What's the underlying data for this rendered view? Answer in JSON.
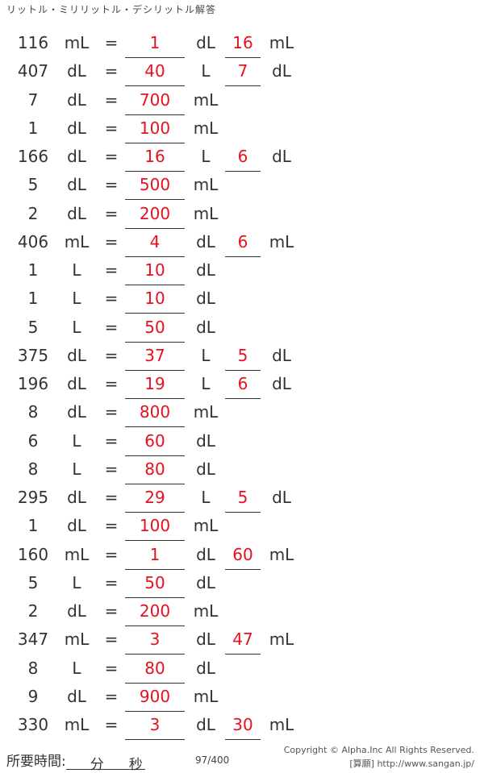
{
  "title": "リットル・ミリリットル・デシリットル解答",
  "rows": [
    [
      "116",
      "mL",
      "=",
      "1",
      "dL",
      "16",
      "mL"
    ],
    [
      "407",
      "dL",
      "=",
      "40",
      "L",
      "7",
      "dL"
    ],
    [
      "7",
      "dL",
      "=",
      "700",
      "mL",
      "",
      ""
    ],
    [
      "1",
      "dL",
      "=",
      "100",
      "mL",
      "",
      ""
    ],
    [
      "166",
      "dL",
      "=",
      "16",
      "L",
      "6",
      "dL"
    ],
    [
      "5",
      "dL",
      "=",
      "500",
      "mL",
      "",
      ""
    ],
    [
      "2",
      "dL",
      "=",
      "200",
      "mL",
      "",
      ""
    ],
    [
      "406",
      "mL",
      "=",
      "4",
      "dL",
      "6",
      "mL"
    ],
    [
      "1",
      "L",
      "=",
      "10",
      "dL",
      "",
      ""
    ],
    [
      "1",
      "L",
      "=",
      "10",
      "dL",
      "",
      ""
    ],
    [
      "5",
      "L",
      "=",
      "50",
      "dL",
      "",
      ""
    ],
    [
      "375",
      "dL",
      "=",
      "37",
      "L",
      "5",
      "dL"
    ],
    [
      "196",
      "dL",
      "=",
      "19",
      "L",
      "6",
      "dL"
    ],
    [
      "8",
      "dL",
      "=",
      "800",
      "mL",
      "",
      ""
    ],
    [
      "6",
      "L",
      "=",
      "60",
      "dL",
      "",
      ""
    ],
    [
      "8",
      "L",
      "=",
      "80",
      "dL",
      "",
      ""
    ],
    [
      "295",
      "dL",
      "=",
      "29",
      "L",
      "5",
      "dL"
    ],
    [
      "1",
      "dL",
      "=",
      "100",
      "mL",
      "",
      ""
    ],
    [
      "160",
      "mL",
      "=",
      "1",
      "dL",
      "60",
      "mL"
    ],
    [
      "5",
      "L",
      "=",
      "50",
      "dL",
      "",
      ""
    ],
    [
      "2",
      "dL",
      "=",
      "200",
      "mL",
      "",
      ""
    ],
    [
      "347",
      "mL",
      "=",
      "3",
      "dL",
      "47",
      "mL"
    ],
    [
      "8",
      "L",
      "=",
      "80",
      "dL",
      "",
      ""
    ],
    [
      "9",
      "dL",
      "=",
      "900",
      "mL",
      "",
      ""
    ],
    [
      "330",
      "mL",
      "=",
      "3",
      "dL",
      "30",
      "mL"
    ]
  ],
  "footer": {
    "time_label": "所要時間:",
    "minutes": "分",
    "seconds": "秒",
    "page": "97/400",
    "copyright": "Copyright © Alpha.Inc All Rights Reserved.",
    "site": "[算願] http://www.sangan.jp/"
  },
  "colors": {
    "answer": "#e8101e"
  }
}
